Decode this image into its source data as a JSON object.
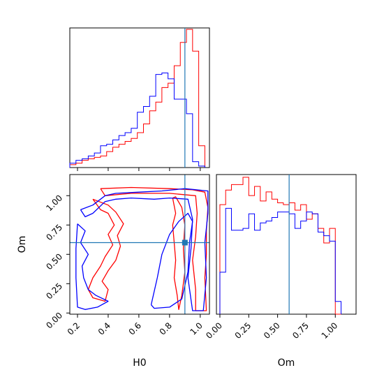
{
  "colors": {
    "red": "#ff0000",
    "blue": "#0000ff",
    "truth": "#1f77b4"
  },
  "truth": {
    "H0": 0.9,
    "Om": 0.6
  },
  "chart_data": [
    {
      "type": "histogram",
      "panel": "H0 marginal",
      "xlim": [
        0.15,
        1.06
      ],
      "bin_edges": [
        0.15,
        0.19,
        0.23,
        0.27,
        0.31,
        0.35,
        0.39,
        0.43,
        0.47,
        0.51,
        0.55,
        0.59,
        0.63,
        0.67,
        0.71,
        0.75,
        0.79,
        0.83,
        0.87,
        0.91,
        0.95,
        0.99,
        1.03
      ],
      "series": [
        {
          "color": "red",
          "values": [
            2,
            3,
            5,
            6,
            7,
            8,
            11,
            14,
            16,
            18,
            20,
            24,
            30,
            39,
            45,
            55,
            58,
            70,
            86,
            95,
            80,
            15
          ]
        },
        {
          "color": "blue",
          "values": [
            3,
            5,
            6,
            8,
            10,
            15,
            16,
            19,
            22,
            24,
            27,
            38,
            42,
            49,
            64,
            65,
            61,
            47,
            47,
            37,
            4,
            1
          ]
        }
      ]
    },
    {
      "type": "contour",
      "panel": "H0 vs Om",
      "xlabel": "H0",
      "ylabel": "Om",
      "xlim": [
        0.15,
        1.06
      ],
      "ylim": [
        -0.01,
        1.18
      ],
      "xticks": [
        0.2,
        0.4,
        0.6,
        0.8,
        1.0
      ],
      "xtick_labels": [
        "0.2",
        "0.4",
        "0.6",
        "0.8",
        "1.0"
      ],
      "yticks": [
        0.0,
        0.25,
        0.5,
        0.75,
        1.0
      ],
      "ytick_labels": [
        "0.00",
        "0.25",
        "0.50",
        "0.75",
        "1.00"
      ],
      "series": [
        {
          "color": "red",
          "contours": [
            [
              [
                0.35,
                1.06
              ],
              [
                0.55,
                1.07
              ],
              [
                0.8,
                1.06
              ],
              [
                0.95,
                1.05
              ],
              [
                1.03,
                1.03
              ],
              [
                1.05,
                0.9
              ],
              [
                1.04,
                0.7
              ],
              [
                1.04,
                0.5
              ],
              [
                1.03,
                0.3
              ],
              [
                1.04,
                0.02
              ],
              [
                0.97,
                0.02
              ],
              [
                0.97,
                0.2
              ],
              [
                0.95,
                0.45
              ],
              [
                0.97,
                0.65
              ],
              [
                0.98,
                0.85
              ],
              [
                0.97,
                1.0
              ],
              [
                0.8,
                1.02
              ],
              [
                0.55,
                1.02
              ],
              [
                0.38,
                1.0
              ],
              [
                0.35,
                1.06
              ]
            ],
            [
              [
                0.82,
                0.98
              ],
              [
                0.84,
                0.85
              ],
              [
                0.82,
                0.75
              ],
              [
                0.83,
                0.6
              ],
              [
                0.84,
                0.45
              ],
              [
                0.83,
                0.3
              ],
              [
                0.85,
                0.15
              ],
              [
                0.86,
                0.03
              ],
              [
                0.88,
                0.15
              ],
              [
                0.9,
                0.35
              ],
              [
                0.89,
                0.55
              ],
              [
                0.9,
                0.75
              ],
              [
                0.88,
                0.9
              ],
              [
                0.84,
                0.99
              ],
              [
                0.82,
                0.98
              ]
            ],
            [
              [
                0.3,
                0.97
              ],
              [
                0.35,
                0.88
              ],
              [
                0.4,
                0.85
              ],
              [
                0.44,
                0.75
              ],
              [
                0.4,
                0.67
              ],
              [
                0.43,
                0.58
              ],
              [
                0.38,
                0.48
              ],
              [
                0.35,
                0.4
              ],
              [
                0.3,
                0.3
              ],
              [
                0.27,
                0.2
              ],
              [
                0.3,
                0.13
              ],
              [
                0.38,
                0.1
              ],
              [
                0.4,
                0.2
              ],
              [
                0.36,
                0.27
              ],
              [
                0.4,
                0.36
              ],
              [
                0.45,
                0.45
              ],
              [
                0.48,
                0.57
              ],
              [
                0.46,
                0.66
              ],
              [
                0.5,
                0.76
              ],
              [
                0.45,
                0.86
              ],
              [
                0.4,
                0.92
              ],
              [
                0.3,
                0.97
              ]
            ]
          ]
        },
        {
          "color": "blue",
          "contours": [
            [
              [
                0.22,
                0.88
              ],
              [
                0.3,
                0.92
              ],
              [
                0.38,
                1.0
              ],
              [
                0.45,
                1.02
              ],
              [
                0.6,
                1.03
              ],
              [
                0.75,
                1.04
              ],
              [
                0.9,
                1.06
              ],
              [
                1.05,
                1.04
              ],
              [
                1.05,
                0.85
              ],
              [
                1.03,
                0.6
              ],
              [
                1.04,
                0.3
              ],
              [
                1.02,
                0.02
              ],
              [
                0.95,
                0.02
              ],
              [
                0.92,
                0.3
              ],
              [
                0.94,
                0.55
              ],
              [
                0.95,
                0.8
              ],
              [
                0.92,
                0.97
              ],
              [
                0.8,
                0.98
              ],
              [
                0.7,
                0.97
              ],
              [
                0.55,
                0.98
              ],
              [
                0.45,
                0.97
              ],
              [
                0.38,
                0.95
              ],
              [
                0.3,
                0.85
              ],
              [
                0.25,
                0.82
              ],
              [
                0.22,
                0.88
              ]
            ],
            [
              [
                0.68,
                0.07
              ],
              [
                0.72,
                0.3
              ],
              [
                0.75,
                0.5
              ],
              [
                0.8,
                0.67
              ],
              [
                0.86,
                0.78
              ],
              [
                0.92,
                0.85
              ],
              [
                0.95,
                0.78
              ],
              [
                0.93,
                0.6
              ],
              [
                0.92,
                0.35
              ],
              [
                0.88,
                0.12
              ],
              [
                0.8,
                0.05
              ],
              [
                0.7,
                0.04
              ],
              [
                0.68,
                0.07
              ]
            ],
            [
              [
                0.2,
                0.76
              ],
              [
                0.25,
                0.7
              ],
              [
                0.22,
                0.6
              ],
              [
                0.27,
                0.5
              ],
              [
                0.23,
                0.4
              ],
              [
                0.24,
                0.3
              ],
              [
                0.27,
                0.2
              ],
              [
                0.32,
                0.15
              ],
              [
                0.4,
                0.1
              ],
              [
                0.33,
                0.05
              ],
              [
                0.25,
                0.03
              ],
              [
                0.2,
                0.05
              ],
              [
                0.19,
                0.3
              ],
              [
                0.19,
                0.55
              ],
              [
                0.2,
                0.76
              ]
            ]
          ]
        }
      ]
    },
    {
      "type": "histogram",
      "panel": "Om marginal",
      "xlabel": "Om",
      "xlim": [
        -0.03,
        1.18
      ],
      "xticks": [
        0.0,
        0.25,
        0.5,
        0.75,
        1.0
      ],
      "xtick_labels": [
        "0.00",
        "0.25",
        "0.50",
        "0.75",
        "1.00"
      ],
      "bin_edges": [
        0.0,
        0.05,
        0.1,
        0.15,
        0.2,
        0.25,
        0.3,
        0.35,
        0.4,
        0.45,
        0.5,
        0.55,
        0.6,
        0.65,
        0.7,
        0.75,
        0.8,
        0.85,
        0.9,
        0.95,
        1.0,
        1.05
      ],
      "series": [
        {
          "color": "red",
          "values": [
            60,
            68,
            71,
            71,
            75,
            65,
            70,
            62,
            67,
            63,
            61,
            60,
            61,
            57,
            60,
            52,
            55,
            47,
            39,
            47,
            0
          ]
        },
        {
          "color": "blue",
          "values": [
            23,
            58,
            46,
            46,
            47,
            55,
            46,
            50,
            51,
            53,
            56,
            56,
            55,
            47,
            51,
            56,
            55,
            45,
            43,
            40,
            7
          ]
        }
      ]
    }
  ]
}
